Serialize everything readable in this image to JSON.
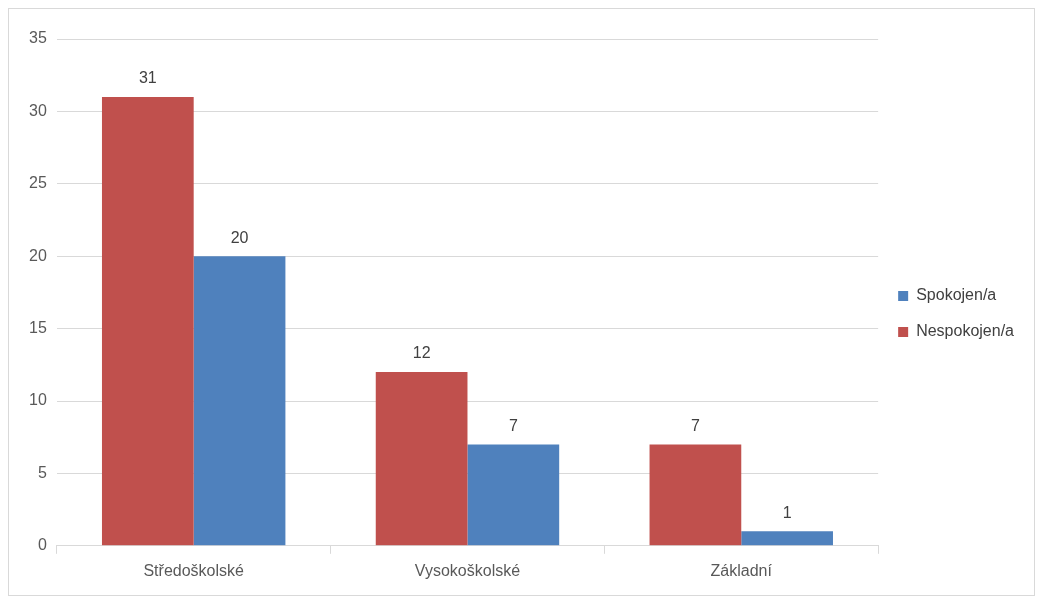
{
  "chart_data": {
    "type": "bar",
    "categories": [
      "Středoškolské",
      "Vysokoškolské",
      "Základní"
    ],
    "series": [
      {
        "name": "Nespokojen/a",
        "color": "#c0504d",
        "values": [
          31,
          12,
          7
        ]
      },
      {
        "name": "Spokojen/a",
        "color": "#4f81bd",
        "values": [
          20,
          7,
          1
        ]
      }
    ],
    "ylim": [
      0,
      35
    ],
    "yticks": [
      0,
      5,
      10,
      15,
      20,
      25,
      30,
      35
    ],
    "grid": "y",
    "legend": "right",
    "data_labels": true
  }
}
